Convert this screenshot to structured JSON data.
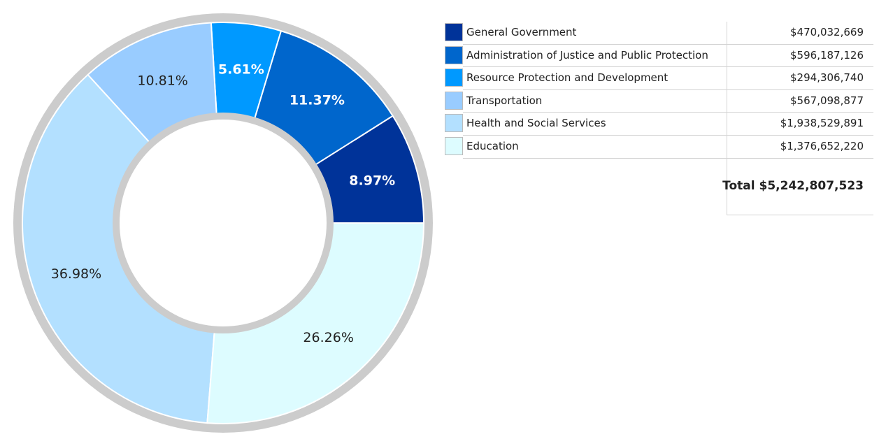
{
  "chart_data": {
    "type": "pie",
    "donut": true,
    "direction": "counterclockwise-from-3-oclock",
    "slices": [
      {
        "label": "General Government",
        "value": 470032669,
        "value_label": "$470,032,669",
        "percent_label": "8.97%",
        "color": "#003399",
        "label_color": "#ffffff"
      },
      {
        "label": "Administration of Justice and Public Protection",
        "value": 596187126,
        "value_label": "$596,187,126",
        "percent_label": "11.37%",
        "color": "#0066cc",
        "label_color": "#ffffff"
      },
      {
        "label": "Resource Protection and Development",
        "value": 294306740,
        "value_label": "$294,306,740",
        "percent_label": "5.61%",
        "color": "#0099ff",
        "label_color": "#ffffff"
      },
      {
        "label": "Transportation",
        "value": 567098877,
        "value_label": "$567,098,877",
        "percent_label": "10.81%",
        "color": "#99ccff",
        "label_color": "#222222"
      },
      {
        "label": "Health and Social Services",
        "value": 1938529891,
        "value_label": "$1,938,529,891",
        "percent_label": "36.98%",
        "color": "#b3e0ff",
        "label_color": "#222222"
      },
      {
        "label": "Education",
        "value": 1376652220,
        "value_label": "$1,376,652,220",
        "percent_label": "26.26%",
        "color": "#ddfcff",
        "label_color": "#222222"
      }
    ],
    "total_label": "Total $5,242,807,523",
    "legend_position": "right",
    "ring_color": "#cccccc"
  }
}
